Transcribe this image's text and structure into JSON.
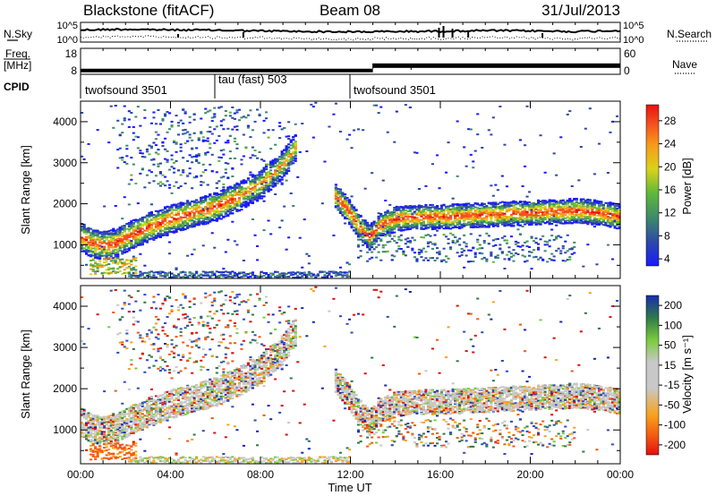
{
  "header": {
    "title": "Blackstone (fitACF)",
    "beam": "Beam 08",
    "date": "31/Jul/2013"
  },
  "panels": {
    "nsky": {
      "left_label": "N.Sky",
      "right_label": "N.Search",
      "ticks_left": [
        "10^5",
        "10^0"
      ],
      "ticks_right": [
        "10^5",
        "10^0"
      ]
    },
    "freq": {
      "left_label_1": "Freq.",
      "left_label_2": "[MHz]",
      "right_label": "Nave",
      "ticks_left": [
        "18",
        "8"
      ],
      "ticks_right": [
        "60",
        "0"
      ]
    },
    "cpid": {
      "label": "CPID",
      "segments": [
        {
          "label": "twofsound 3501",
          "start_h": 0
        },
        {
          "label": "tau (fast) 503",
          "start_h": 6
        },
        {
          "label": "twofsound 3501",
          "start_h": 12
        }
      ]
    }
  },
  "x_axis": {
    "title": "Time UT",
    "ticks": [
      "00:00",
      "04:00",
      "08:00",
      "12:00",
      "16:00",
      "20:00",
      "00:00"
    ]
  },
  "power_panel": {
    "ylabel": "Slant Range [km]",
    "yticks": [
      "4000",
      "3000",
      "2000",
      "1000"
    ],
    "colorbar_label": "Power [dB]",
    "colorbar_ticks": [
      "28",
      "24",
      "20",
      "16",
      "12",
      "8",
      "4"
    ]
  },
  "velocity_panel": {
    "ylabel": "Slant Range [km]",
    "yticks": [
      "4000",
      "3000",
      "2000",
      "1000"
    ],
    "colorbar_label": "Velocity [m s⁻¹]",
    "colorbar_ticks": [
      "200",
      "100",
      "50",
      "15",
      "-15",
      "-50",
      "-100",
      "-200"
    ]
  },
  "chart_data": [
    {
      "type": "heatmap",
      "title": "Power",
      "x_unit": "hours UT",
      "xlim": [
        0,
        24
      ],
      "ylim": [
        180,
        4500
      ],
      "ylabel": "Slant Range [km]",
      "colorbar": {
        "label": "Power [dB]",
        "range": [
          0,
          32
        ]
      },
      "echo_bands": [
        {
          "x": [
            0,
            0.5,
            1,
            1.5,
            2,
            3,
            4,
            5,
            6,
            7,
            8,
            9,
            9.5
          ],
          "y": [
            1200,
            1050,
            1000,
            1050,
            1200,
            1450,
            1650,
            1800,
            1950,
            2200,
            2500,
            3000,
            3400
          ]
        },
        {
          "x": [
            11.3,
            11.8,
            12.3,
            12.8,
            13.3,
            14,
            15,
            16,
            18,
            20,
            22,
            23,
            24
          ],
          "y": [
            2200,
            1900,
            1500,
            1200,
            1500,
            1650,
            1700,
            1700,
            1750,
            1800,
            1850,
            1800,
            1700
          ]
        }
      ]
    },
    {
      "type": "heatmap",
      "title": "Velocity",
      "x_unit": "hours UT",
      "xlim": [
        0,
        24
      ],
      "ylim": [
        180,
        4500
      ],
      "ylabel": "Slant Range [km]",
      "colorbar": {
        "label": "Velocity [m s⁻¹]",
        "range": [
          -250,
          250
        ]
      }
    },
    {
      "type": "line",
      "title": "N.Sky",
      "x": [
        0,
        2,
        4,
        6,
        8,
        10,
        12,
        14,
        16,
        18,
        20,
        22,
        24
      ],
      "y_log10": [
        3.5,
        3.7,
        3.5,
        3.4,
        3.2,
        3.0,
        2.9,
        3.0,
        3.1,
        3.3,
        3.2,
        3.0,
        3.3
      ]
    },
    {
      "type": "line",
      "title": "Freq.",
      "x": [
        0,
        13,
        13,
        24
      ],
      "y": [
        10.5,
        10.5,
        12.2,
        12.2
      ]
    }
  ]
}
